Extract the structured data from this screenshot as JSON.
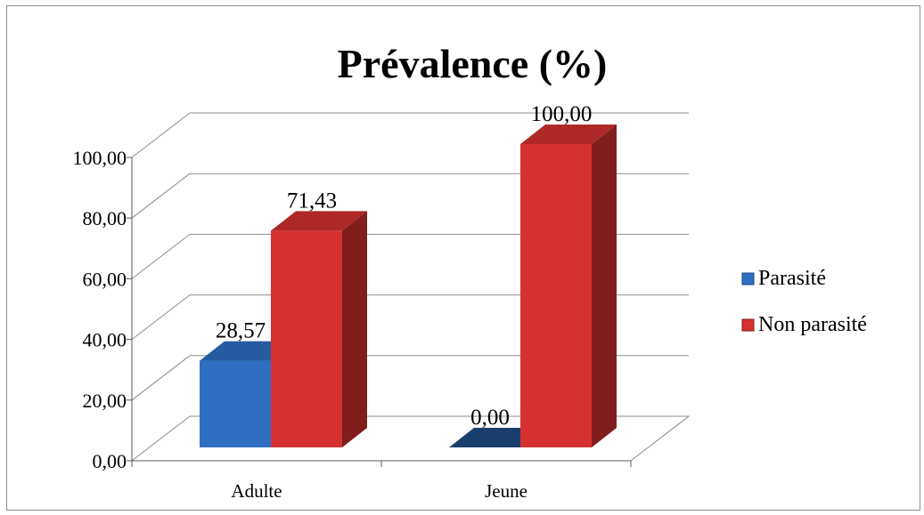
{
  "chart_data": {
    "type": "bar",
    "title": "Prévalence (%)",
    "categories": [
      "Adulte",
      "Jeune"
    ],
    "series": [
      {
        "name": "Parasité",
        "values": [
          28.57,
          0.0
        ],
        "labels": [
          "28,57",
          "0,00"
        ],
        "color": "#2e6fc4"
      },
      {
        "name": "Non parasité",
        "values": [
          71.43,
          100.0
        ],
        "labels": [
          "71,43",
          "100,00"
        ],
        "color": "#d63131"
      }
    ],
    "y_ticks": [
      0,
      20,
      40,
      60,
      80,
      100
    ],
    "y_tick_labels": [
      "0,00",
      "20,00",
      "40,00",
      "60,00",
      "80,00",
      "100,00"
    ],
    "ylim": [
      0,
      100
    ],
    "grid": true,
    "legend_position": "right",
    "style": "3d-clustered-column"
  }
}
